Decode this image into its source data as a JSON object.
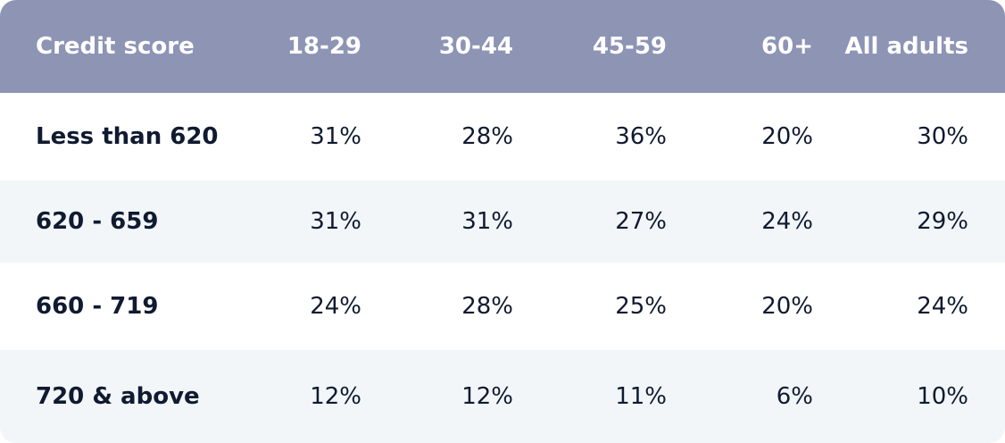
{
  "table": {
    "header": [
      "Credit score",
      "18-29",
      "30-44",
      "45-59",
      "60+",
      "All adults"
    ],
    "rows": [
      [
        "Less than 620",
        "31%",
        "28%",
        "36%",
        "20%",
        "30%"
      ],
      [
        "620 - 659",
        "31%",
        "31%",
        "27%",
        "24%",
        "29%"
      ],
      [
        "660 - 719",
        "24%",
        "28%",
        "25%",
        "20%",
        "24%"
      ],
      [
        "720 & above",
        "12%",
        "12%",
        "11%",
        "6%",
        "10%"
      ]
    ]
  }
}
